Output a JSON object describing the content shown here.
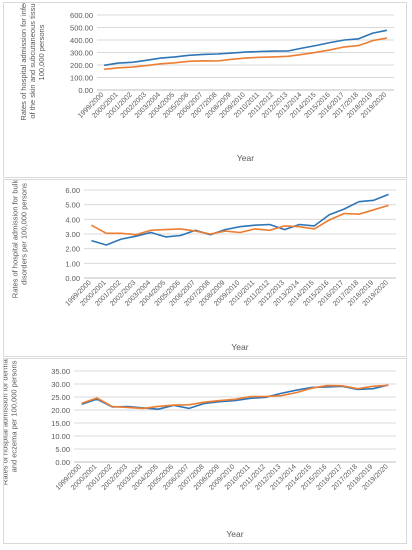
{
  "chart_data": [
    {
      "type": "line",
      "ylabel": "Rates of hospital admission for infections of the skin and subcutaneous tissue per 100,000 persons",
      "xlabel": "Year",
      "ylim": [
        0,
        600
      ],
      "yticks": [
        "0.00",
        "100.00",
        "200.00",
        "300.00",
        "400.00",
        "500.00",
        "600.00"
      ],
      "grid": true,
      "categories": [
        "1999/2000",
        "2000/2001",
        "2001/2002",
        "2002/2003",
        "2003/2004",
        "2004/2005",
        "2005/2006",
        "2006/2007",
        "2007/2008",
        "2008/2009",
        "2009/2010",
        "2010/2011",
        "2011/2012",
        "2012/2013",
        "2013/2014",
        "2014/2015",
        "2015/2016",
        "2016/2017",
        "2017/2018",
        "2018/2019",
        "2019/2020"
      ],
      "series": [
        {
          "color": "#2e75b6",
          "values": [
            198,
            215,
            222,
            238,
            255,
            265,
            278,
            285,
            288,
            295,
            303,
            308,
            311,
            312,
            335,
            356,
            380,
            400,
            410,
            455,
            478
          ]
        },
        {
          "color": "#ed7d31",
          "values": [
            166,
            178,
            183,
            195,
            210,
            218,
            230,
            234,
            232,
            246,
            255,
            262,
            265,
            270,
            285,
            302,
            322,
            345,
            355,
            395,
            415
          ]
        }
      ]
    },
    {
      "type": "line",
      "ylabel": "Rates of hospital admission for bullous disorders per 100,000 persons",
      "xlabel": "Year",
      "ylim": [
        0,
        6
      ],
      "yticks": [
        "0.00",
        "1.00",
        "2.00",
        "3.00",
        "4.00",
        "5.00",
        "6.00"
      ],
      "grid": true,
      "categories": [
        "1999/2000",
        "2000/2001",
        "2001/2002",
        "2002/2003",
        "2003/2004",
        "2004/2005",
        "2005/2006",
        "2006/2007",
        "2007/2008",
        "2008/2009",
        "2009/2010",
        "2010/2011",
        "2011/2012",
        "2012/2013",
        "2013/2014",
        "2014/2015",
        "2015/2016",
        "2016/2017",
        "2017/2018",
        "2018/2019",
        "2019/2020"
      ],
      "series": [
        {
          "color": "#2e75b6",
          "values": [
            2.55,
            2.25,
            2.65,
            2.85,
            3.1,
            2.8,
            2.9,
            3.25,
            2.95,
            3.3,
            3.5,
            3.6,
            3.65,
            3.3,
            3.65,
            3.55,
            4.3,
            4.7,
            5.2,
            5.3,
            5.7
          ]
        },
        {
          "color": "#ed7d31",
          "values": [
            3.6,
            3.05,
            3.05,
            2.95,
            3.25,
            3.3,
            3.35,
            3.2,
            3.0,
            3.2,
            3.1,
            3.35,
            3.25,
            3.55,
            3.5,
            3.35,
            3.95,
            4.4,
            4.35,
            4.65,
            4.95
          ]
        }
      ]
    },
    {
      "type": "line",
      "ylabel": "Rates of hospital admission for dermatitis and eczema per 100,000 persons",
      "xlabel": "Year",
      "ylim": [
        0,
        35
      ],
      "yticks": [
        "0.00",
        "5.00",
        "10.00",
        "15.00",
        "20.00",
        "25.00",
        "30.00",
        "35.00"
      ],
      "grid": true,
      "categories": [
        "1999/2000",
        "2000/2001",
        "2001/2002",
        "2002/2003",
        "2003/2004",
        "2004/2005",
        "2005/2006",
        "2006/2007",
        "2007/2008",
        "2008/2009",
        "2009/2010",
        "2010/2011",
        "2011/2012",
        "2012/2013",
        "2013/2014",
        "2014/2015",
        "2015/2016",
        "2016/2017",
        "2017/2018",
        "2018/2019",
        "2019/2020"
      ],
      "series": [
        {
          "color": "#2e75b6",
          "values": [
            22.2,
            24.2,
            21.2,
            21.3,
            20.8,
            20.3,
            21.8,
            20.6,
            22.5,
            23.2,
            23.6,
            24.5,
            24.9,
            26.4,
            27.6,
            28.7,
            28.9,
            29.1,
            27.9,
            28.2,
            29.6
          ]
        },
        {
          "color": "#ed7d31",
          "values": [
            22.6,
            24.6,
            21.3,
            21.0,
            20.6,
            21.4,
            21.9,
            22.0,
            23.0,
            23.6,
            24.1,
            25.2,
            25.2,
            25.5,
            26.7,
            28.4,
            29.4,
            29.3,
            28.2,
            29.1,
            29.5
          ]
        }
      ]
    }
  ]
}
